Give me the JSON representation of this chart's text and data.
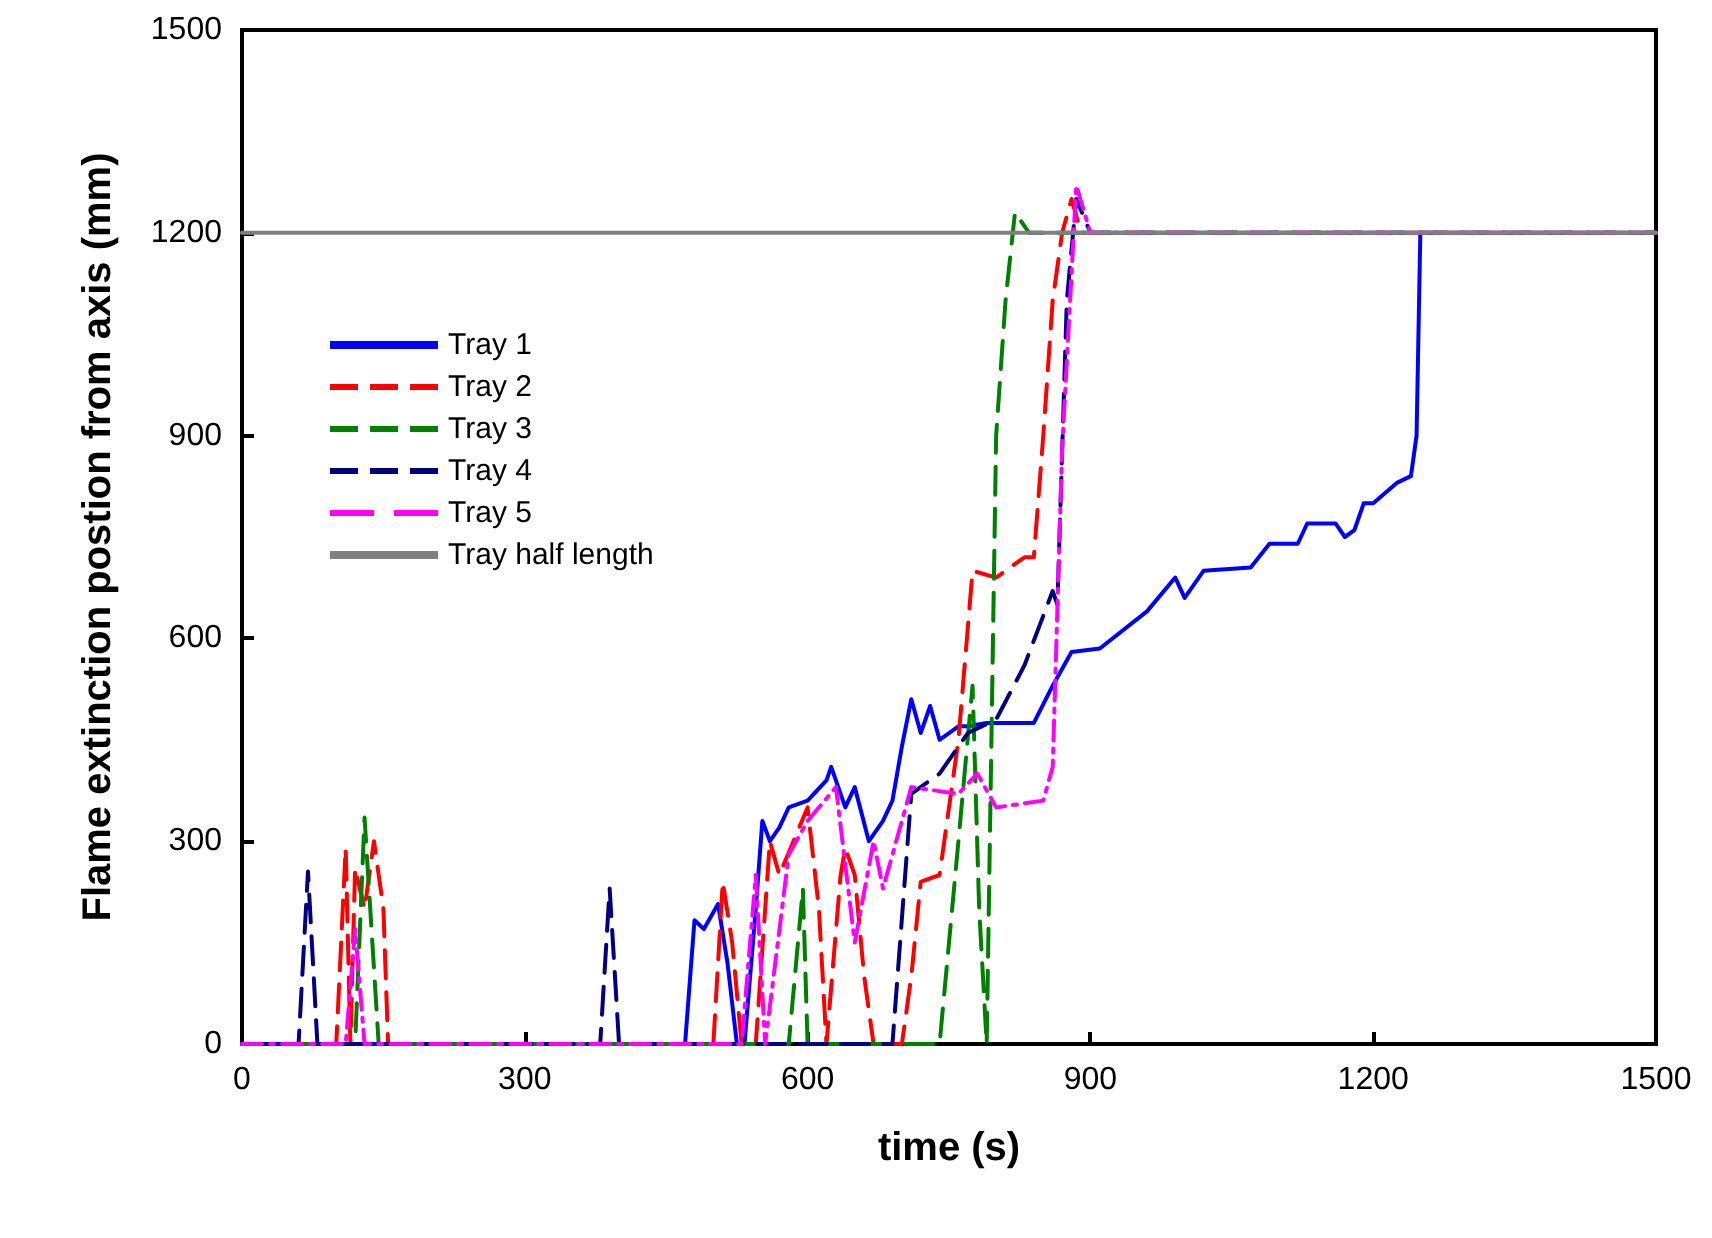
{
  "chart_data": {
    "type": "line",
    "xlabel": "time (s)",
    "ylabel": "Flame extinction postion from axis (mm)",
    "xlim": [
      0,
      1500
    ],
    "ylim": [
      0,
      1500
    ],
    "xticks": [
      0,
      300,
      600,
      900,
      1200,
      1500
    ],
    "yticks": [
      0,
      300,
      600,
      900,
      1200,
      1500
    ],
    "grid": false,
    "legend": "top left",
    "marker": "none",
    "series": [
      {
        "name": "Tray 1",
        "color": "#0000ff",
        "line_style": "solid",
        "x": [
          0,
          470,
          480,
          490,
          505,
          515,
          525,
          533,
          545,
          552,
          560,
          570,
          580,
          600,
          620,
          625,
          640,
          650,
          665,
          680,
          690,
          700,
          710,
          720,
          730,
          740,
          750,
          760,
          770,
          790,
          820,
          840,
          860,
          880,
          910,
          960,
          990,
          1000,
          1020,
          1070,
          1090,
          1120,
          1130,
          1160,
          1170,
          1180,
          1190,
          1200,
          1225,
          1240,
          1246,
          1250
        ],
        "values": [
          0,
          0,
          183,
          170,
          207,
          120,
          0,
          0,
          200,
          330,
          300,
          320,
          350,
          360,
          390,
          410,
          350,
          380,
          300,
          330,
          360,
          440,
          510,
          460,
          500,
          450,
          460,
          470,
          470,
          475,
          475,
          475,
          530,
          580,
          585,
          640,
          690,
          660,
          700,
          705,
          740,
          740,
          770,
          770,
          750,
          760,
          800,
          800,
          830,
          840,
          900,
          1200
        ]
      },
      {
        "name": "Tray 2",
        "color": "#ff0000",
        "line_style": "dashed",
        "x": [
          0,
          100,
          110,
          115,
          120,
          130,
          140,
          150,
          155,
          500,
          510,
          520,
          530,
          545,
          560,
          570,
          585,
          600,
          612,
          620,
          635,
          640,
          650,
          660,
          670,
          700,
          710,
          720,
          740,
          760,
          775,
          800,
          830,
          840,
          850,
          860,
          870,
          880,
          890,
          1500
        ],
        "values": [
          0,
          0,
          290,
          0,
          260,
          200,
          300,
          200,
          0,
          0,
          240,
          150,
          0,
          0,
          300,
          250,
          300,
          350,
          200,
          0,
          250,
          290,
          250,
          100,
          0,
          0,
          100,
          240,
          250,
          450,
          700,
          690,
          720,
          720,
          900,
          1100,
          1200,
          1250,
          1200,
          1200
        ]
      },
      {
        "name": "Tray 3",
        "color": "#008000",
        "line_style": "dashed",
        "x": [
          0,
          120,
          130,
          145,
          580,
          595,
          600,
          740,
          760,
          775,
          782,
          790,
          800,
          810,
          820,
          835,
          1500
        ],
        "values": [
          0,
          0,
          335,
          0,
          0,
          230,
          0,
          0,
          300,
          530,
          200,
          0,
          900,
          1100,
          1230,
          1200,
          1200
        ]
      },
      {
        "name": "Tray 4",
        "color": "#000080",
        "line_style": "dashed",
        "x": [
          0,
          60,
          70,
          80,
          380,
          390,
          400,
          690,
          710,
          740,
          770,
          800,
          830,
          860,
          865,
          875,
          885,
          900,
          1500
        ],
        "values": [
          0,
          0,
          255,
          0,
          0,
          230,
          0,
          0,
          370,
          400,
          460,
          480,
          560,
          670,
          650,
          1100,
          1250,
          1200,
          1200
        ]
      },
      {
        "name": "Tray 5",
        "color": "#ff00ff",
        "line_style": "dotted",
        "x": [
          0,
          110,
          120,
          130,
          530,
          545,
          555,
          580,
          600,
          630,
          650,
          670,
          680,
          710,
          760,
          780,
          800,
          850,
          860,
          870,
          885,
          900,
          1500
        ],
        "values": [
          0,
          0,
          170,
          0,
          0,
          250,
          0,
          280,
          330,
          380,
          150,
          300,
          230,
          380,
          370,
          400,
          350,
          360,
          410,
          880,
          1270,
          1200,
          1200
        ]
      },
      {
        "name": "Tray half length",
        "color": "#808080",
        "line_style": "solid",
        "x": [
          0,
          1500
        ],
        "values": [
          1200,
          1200
        ]
      }
    ]
  }
}
